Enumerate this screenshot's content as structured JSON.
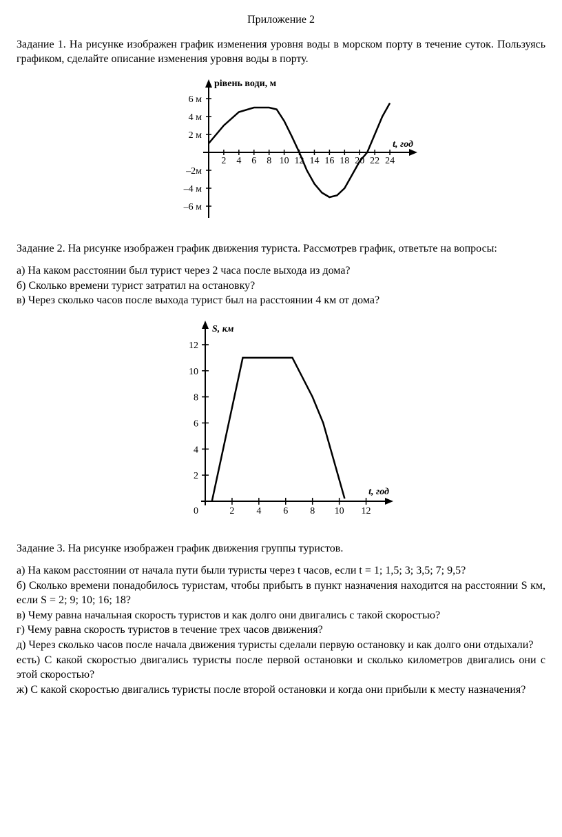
{
  "title": "Приложение 2",
  "task1": {
    "text": "Задание 1. На рисунке изображен график изменения уровня воды в морском порту в течение суток. Пользуясь графиком, сделайте описание изменения уровня воды в порту.",
    "chart": {
      "type": "line",
      "ylabel": "рівень води, м",
      "xlabel": "t, год",
      "xlim": [
        0,
        26
      ],
      "ylim": [
        -7,
        7
      ],
      "xticks": [
        2,
        4,
        6,
        8,
        10,
        12,
        14,
        16,
        18,
        20,
        22,
        24
      ],
      "yticks_pos": [
        2,
        4,
        6
      ],
      "yticks_neg": [
        -2,
        -4,
        -6
      ],
      "yticklabels_pos": [
        "2 м",
        "4 м",
        "6 м"
      ],
      "yticklabels_neg": [
        "–2м",
        "–4 м",
        "–6 м"
      ],
      "points": [
        [
          0,
          1
        ],
        [
          2,
          3
        ],
        [
          4,
          4.5
        ],
        [
          6,
          5
        ],
        [
          7,
          5
        ],
        [
          8,
          5
        ],
        [
          9,
          4.8
        ],
        [
          10,
          3.5
        ],
        [
          11,
          1.8
        ],
        [
          12,
          0
        ],
        [
          13,
          -2
        ],
        [
          14,
          -3.5
        ],
        [
          15,
          -4.5
        ],
        [
          16,
          -5
        ],
        [
          17,
          -4.8
        ],
        [
          18,
          -4
        ],
        [
          19,
          -2.5
        ],
        [
          20,
          -1
        ],
        [
          21,
          0
        ],
        [
          22,
          2
        ],
        [
          23,
          4
        ],
        [
          24,
          5.5
        ]
      ],
      "line_color": "#000000",
      "bg": "#ffffff"
    }
  },
  "task2": {
    "intro": "Задание 2. На рисунке изображен график движения туриста. Рассмотрев график, ответьте на вопросы:",
    "a": "а) На каком расстоянии был турист через 2 часа после выхода из дома?",
    "b": "б) Сколько времени турист затратил на остановку?",
    "v": "в) Через сколько часов после выхода турист был на расстоянии 4 км от дома?",
    "chart": {
      "type": "line",
      "ylabel": "S, км",
      "xlabel": "t, год",
      "xlim": [
        0,
        13
      ],
      "ylim": [
        0,
        13
      ],
      "xticks": [
        2,
        4,
        6,
        8,
        10,
        12
      ],
      "yticks": [
        2,
        4,
        6,
        8,
        10,
        12
      ],
      "points": [
        [
          0.5,
          0
        ],
        [
          2.8,
          11
        ],
        [
          6.5,
          11
        ],
        [
          8,
          8
        ],
        [
          8.8,
          6
        ],
        [
          10.4,
          0.2
        ]
      ],
      "line_color": "#000000",
      "bg": "#ffffff"
    }
  },
  "task3": {
    "intro": "Задание 3. На рисунке изображен график движения группы туристов.",
    "a": "а) На каком расстоянии от начала пути были туристы через t часов, если t = 1; 1,5; 3; 3,5; 7; 9,5?",
    "b": "б) Сколько времени понадобилось туристам, чтобы прибыть в пункт назначения находится на расстоянии S км, если S = 2; 9; 10; 16; 18?",
    "v": "в) Чему равна начальная скорость туристов и как долго они двигались с такой скоростью?",
    "g": "г) Чему равна скорость туристов в течение трех часов движения?",
    "d": "д) Через сколько часов после начала движения туристы сделали первую остановку и как долго они отдыхали?",
    "e": "есть) С какой скоростью двигались туристы после первой остановки и сколько километров двигались они с этой скоростью?",
    "zh": "ж) С какой скоростью двигались туристы после второй остановки и когда они прибыли к месту назначения?"
  }
}
